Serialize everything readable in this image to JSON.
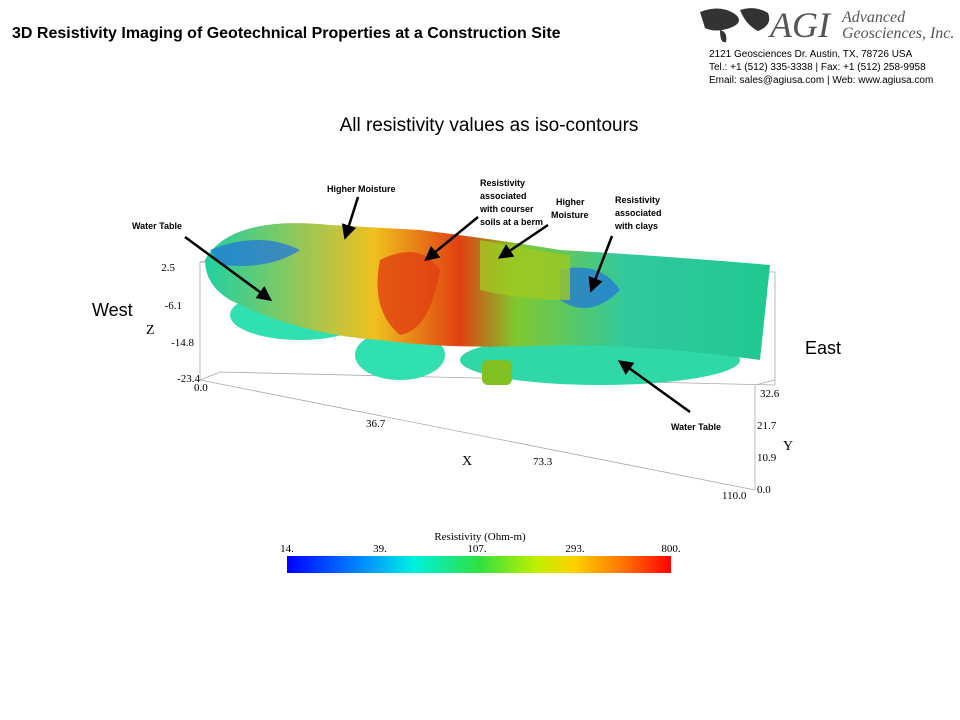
{
  "header": {
    "title": "3D Resistivity Imaging of Geotechnical Properties at a Construction Site",
    "logo": {
      "mark": "AGI",
      "name_lines": [
        "Advanced",
        "Geosciences, Inc."
      ]
    },
    "address_lines": [
      "2121 Geosciences Dr. Austin, TX, 78726 USA",
      "Tel.: +1 (512) 335-3338 | Fax: +1 (512) 258-9958",
      "Email:  sales@agiusa.com | Web: www.agiusa.com"
    ]
  },
  "subtitle": "All resistivity values as iso-contours",
  "directions": {
    "west": "West",
    "east": "East"
  },
  "axes": {
    "z": {
      "label": "Z",
      "ticks": [
        "2.5",
        "-6.1",
        "-14.8",
        "-23.4"
      ]
    },
    "x": {
      "label": "X",
      "ticks": [
        "0.0",
        "36.7",
        "73.3",
        "110.0"
      ]
    },
    "y": {
      "label": "Y",
      "ticks": [
        "32.6",
        "21.7",
        "10.9",
        "0.0"
      ]
    }
  },
  "annotations": [
    {
      "lines": [
        "Water Table"
      ]
    },
    {
      "lines": [
        "Higher Moisture"
      ]
    },
    {
      "lines": [
        "Resistivity",
        "associated",
        "with courser",
        "soils at a berm"
      ]
    },
    {
      "lines": [
        "Higher",
        "Moisture"
      ]
    },
    {
      "lines": [
        "Resistivity",
        "associated",
        "with clays"
      ]
    },
    {
      "lines": [
        "Water Table"
      ]
    }
  ],
  "colorbar": {
    "title": "Resistivity (Ohm-m)",
    "ticks": [
      "14.",
      "39.",
      "107.",
      "293.",
      "800."
    ]
  }
}
